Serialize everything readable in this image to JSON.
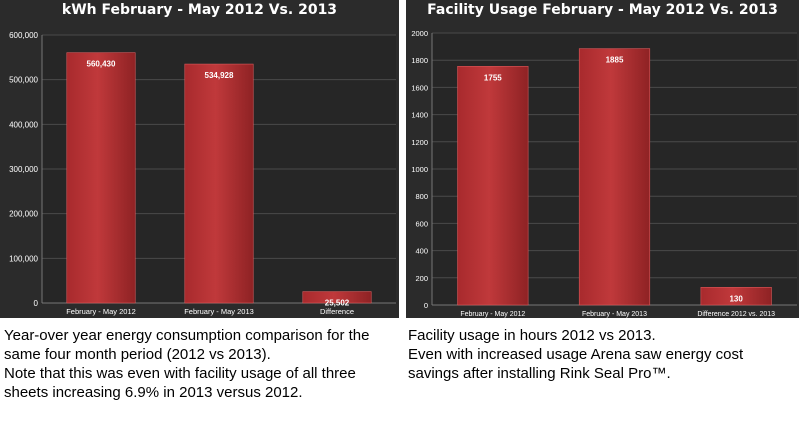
{
  "chart_data": [
    {
      "type": "bar",
      "title": "kWh February - May 2012 Vs. 2013",
      "categories": [
        "February - May 2012",
        "February - May 2013",
        "Difference"
      ],
      "values": [
        560430,
        534928,
        25502
      ],
      "value_labels": [
        "560,430",
        "534,928",
        "25,502"
      ],
      "yticks": [
        "0",
        "100,000",
        "200,000",
        "300,000",
        "400,000",
        "500,000",
        "600,000"
      ],
      "ylim": [
        0,
        600000
      ],
      "xlabel": "",
      "ylabel": "",
      "grid": true,
      "bar_color": "#c0393b"
    },
    {
      "type": "bar",
      "title": "Facility Usage February - May 2012 Vs. 2013",
      "categories": [
        "February - May 2012",
        "February - May 2013",
        "Difference 2012 vs. 2013"
      ],
      "values": [
        1755,
        1885,
        130
      ],
      "value_labels": [
        "1755",
        "1885",
        "130"
      ],
      "yticks": [
        "0",
        "200",
        "400",
        "600",
        "800",
        "1000",
        "1200",
        "1400",
        "1600",
        "1800",
        "2000"
      ],
      "ylim": [
        0,
        2000
      ],
      "xlabel": "",
      "ylabel": "",
      "grid": true,
      "bar_color": "#c0393b"
    }
  ],
  "captions": {
    "left": [
      "Year-over year energy consumption comparison for the",
      "same four month period (2012 vs 2013).",
      "Note that this was even with facility usage of all three",
      "sheets increasing 6.9% in 2013 versus 2012."
    ],
    "right": [
      "Facility usage in hours 2012 vs 2013.",
      "Even with increased usage Arena saw energy cost",
      "savings after installing Rink Seal Pro™."
    ]
  }
}
